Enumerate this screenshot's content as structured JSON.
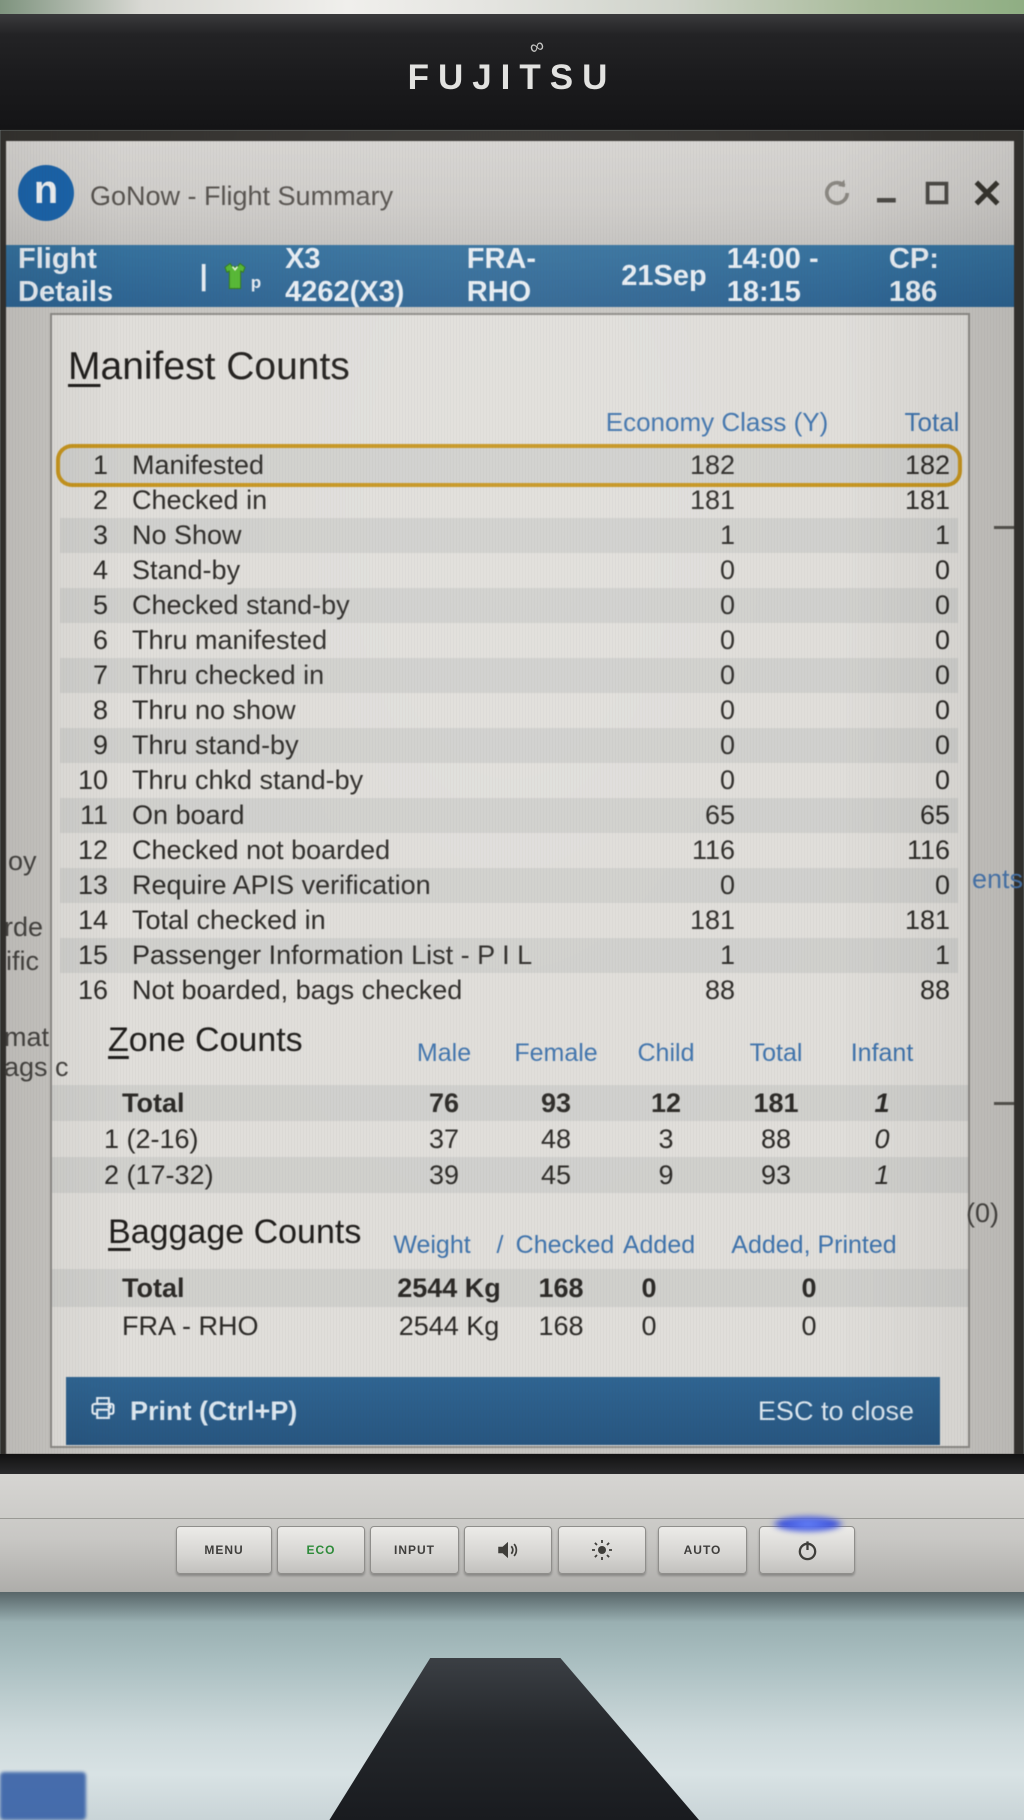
{
  "window": {
    "title": "GoNow - Flight Summary",
    "logo_letter": "n",
    "controls": [
      "refresh-icon",
      "minimize-icon",
      "maximize-icon",
      "close-icon"
    ]
  },
  "flight_bar": {
    "label": "Flight Details",
    "separator": "|",
    "pax_icon": "jacket-icon",
    "pax_icon_sub": "p",
    "flight": "X3 4262(X3)",
    "route": "FRA-RHO",
    "date": "21Sep",
    "time": "14:00 - 18:15",
    "cp": "CP: 186"
  },
  "manifest": {
    "title": "Manifest Counts",
    "col_economy": "Economy Class (Y)",
    "col_total": "Total",
    "rows": [
      {
        "n": "1",
        "label": "Manifested",
        "economy": "182",
        "total": "182",
        "highlight": true
      },
      {
        "n": "2",
        "label": "Checked in",
        "economy": "181",
        "total": "181"
      },
      {
        "n": "3",
        "label": "No Show",
        "economy": "1",
        "total": "1"
      },
      {
        "n": "4",
        "label": "Stand-by",
        "economy": "0",
        "total": "0"
      },
      {
        "n": "5",
        "label": "Checked stand-by",
        "economy": "0",
        "total": "0"
      },
      {
        "n": "6",
        "label": "Thru manifested",
        "economy": "0",
        "total": "0"
      },
      {
        "n": "7",
        "label": "Thru checked in",
        "economy": "0",
        "total": "0"
      },
      {
        "n": "8",
        "label": "Thru no show",
        "economy": "0",
        "total": "0"
      },
      {
        "n": "9",
        "label": "Thru stand-by",
        "economy": "0",
        "total": "0"
      },
      {
        "n": "10",
        "label": "Thru chkd stand-by",
        "economy": "0",
        "total": "0"
      },
      {
        "n": "11",
        "label": "On board",
        "economy": "65",
        "total": "65"
      },
      {
        "n": "12",
        "label": "Checked not boarded",
        "economy": "116",
        "total": "116"
      },
      {
        "n": "13",
        "label": "Require APIS verification",
        "economy": "0",
        "total": "0"
      },
      {
        "n": "14",
        "label": "Total checked in",
        "economy": "181",
        "total": "181"
      },
      {
        "n": "15",
        "label": "Passenger Information List - P I L",
        "economy": "1",
        "total": "1"
      },
      {
        "n": "16",
        "label": "Not boarded, bags checked",
        "economy": "88",
        "total": "88"
      }
    ]
  },
  "zone": {
    "title": "Zone Counts",
    "headers": [
      "Male",
      "Female",
      "Child",
      "Total",
      "Infant"
    ],
    "rows": [
      {
        "label": "Total",
        "values": [
          "76",
          "93",
          "12",
          "181",
          "1"
        ],
        "bold": true,
        "shade": true
      },
      {
        "label": "1 (2-16)",
        "values": [
          "37",
          "48",
          "3",
          "88",
          "0"
        ]
      },
      {
        "label": "2 (17-32)",
        "values": [
          "39",
          "45",
          "9",
          "93",
          "1"
        ],
        "shade": true
      }
    ]
  },
  "baggage": {
    "title": "Baggage Counts",
    "headers": {
      "weight": "Weight",
      "slash": "/",
      "checked": "Checked",
      "added": "Added",
      "added_printed": "Added, Printed"
    },
    "rows": [
      {
        "label": "Total",
        "values": [
          "2544 Kg",
          "168",
          "0",
          "0"
        ],
        "bold": true,
        "shade": true
      },
      {
        "label": "FRA - RHO",
        "values": [
          "2544 Kg",
          "168",
          "0",
          "0"
        ]
      }
    ]
  },
  "footer": {
    "print": "Print (Ctrl+P)",
    "esc": "ESC to close"
  },
  "background_fragments": {
    "left": [
      "oy",
      "rde",
      "ific",
      "mat",
      "ags c"
    ],
    "right": [
      "ents",
      "(0)"
    ]
  },
  "monitor": {
    "brand": "FUJITSU",
    "buttons": [
      {
        "type": "text",
        "label": "MENU"
      },
      {
        "type": "text",
        "label": "ECO",
        "accent": true
      },
      {
        "type": "text",
        "label": "INPUT"
      },
      {
        "type": "icon",
        "icon": "volume-icon"
      },
      {
        "type": "icon",
        "icon": "brightness-icon"
      },
      {
        "type": "text",
        "label": "AUTO"
      },
      {
        "type": "icon",
        "icon": "power-icon"
      }
    ]
  },
  "colors": {
    "titlebar_logo_blue": "#1b64ab",
    "flight_bar_blue": "#2f6b9a",
    "table_header_blue": "#3f74ae",
    "highlight_orange": "#c8961e",
    "footer_blue": "#2c6190",
    "eco_green": "#2e8b3a",
    "power_led_blue": "#4a6cf0"
  }
}
